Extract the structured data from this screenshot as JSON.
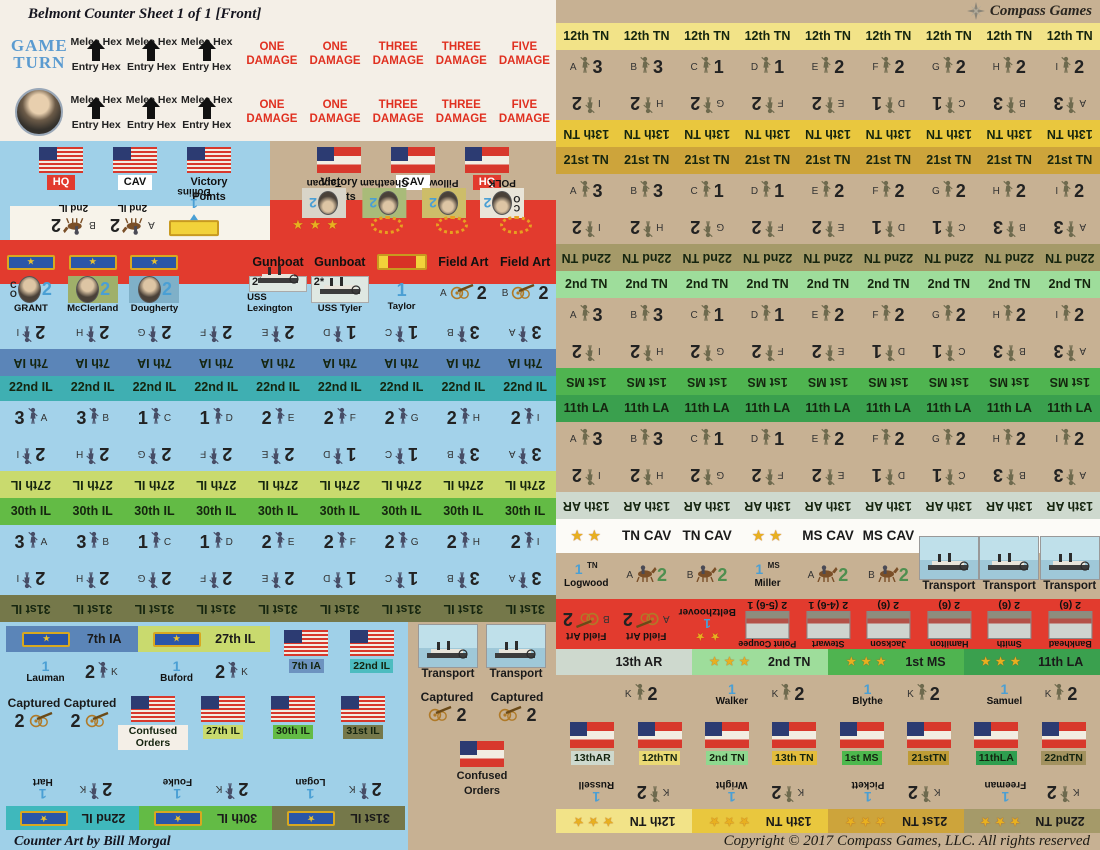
{
  "title": "Belmont Counter Sheet 1 of 1 [Front]",
  "publisher": "Compass Games",
  "credits": {
    "art": "Counter Art by Bill Morgal",
    "copyright": "Copyright © 2017 Compass Games, LLC. All rights reserved"
  },
  "header": {
    "gt1": "GAME",
    "gt2": "TURN",
    "rows": [
      {
        "portrait": "none",
        "melee": [
          {
            "t": "Melee Hex",
            "b": "Entry Hex"
          },
          {
            "t": "Melee Hex",
            "b": "Entry Hex"
          },
          {
            "t": "Melee Hex",
            "b": "Entry Hex"
          }
        ],
        "damage": [
          {
            "l1": "ONE",
            "l2": "DAMAGE"
          },
          {
            "l1": "ONE",
            "l2": "DAMAGE"
          },
          {
            "l1": "THREE",
            "l2": "DAMAGE"
          },
          {
            "l1": "THREE",
            "l2": "DAMAGE"
          },
          {
            "l1": "FIVE",
            "l2": "DAMAGE"
          }
        ]
      },
      {
        "portrait": "grant",
        "melee": [
          {
            "t": "Melee Hex",
            "b": "Entry Hex"
          },
          {
            "t": "Melee Hex",
            "b": "Entry Hex"
          },
          {
            "t": "Melee Hex",
            "b": "Entry Hex"
          }
        ],
        "damage": [
          {
            "l1": "ONE",
            "l2": "DAMAGE"
          },
          {
            "l1": "ONE",
            "l2": "DAMAGE"
          },
          {
            "l1": "THREE",
            "l2": "DAMAGE"
          },
          {
            "l1": "THREE",
            "l2": "DAMAGE"
          },
          {
            "l1": "FIVE",
            "l2": "DAMAGE"
          }
        ]
      }
    ]
  },
  "union_markers": {
    "flags": [
      {
        "label": "HQ",
        "variant": "us",
        "lv": "red"
      },
      {
        "label": "CAV",
        "variant": "us",
        "lv": "white"
      },
      {
        "label": "Victory\nPoints",
        "variant": "us",
        "lv": "none"
      }
    ],
    "cav": [
      {
        "name": "2nd IL",
        "l": "B",
        "v": "2"
      },
      {
        "name": "2nd IL",
        "l": "A",
        "v": "2"
      }
    ],
    "dollins": {
      "name": "Dollins",
      "v": "1"
    }
  },
  "csa_markers": {
    "flags": [
      {
        "label": "Victory\nPoints",
        "variant": "csa",
        "lv": "none"
      },
      {
        "label": "CAV",
        "variant": "csa",
        "lv": "white"
      },
      {
        "label": "HQ",
        "variant": "csa",
        "lv": "red"
      }
    ],
    "leaders": [
      {
        "name": "Tappan",
        "v": "2",
        "box": "#d9d5c9",
        "co": ""
      },
      {
        "name": "Cheatham",
        "v": "2",
        "box": "#a9bb79",
        "co": ""
      },
      {
        "name": "Pillow",
        "v": "2",
        "box": "#cdbd69",
        "co": ""
      },
      {
        "name": "POLK",
        "v": "2",
        "box": "#e9e5d9",
        "co": "C\nO"
      }
    ],
    "stars": "★ ★ ★"
  },
  "union_band": {
    "gunboat_label": "Gunboat",
    "field_art_label": "Field Art",
    "leaders": [
      {
        "name": "GRANT",
        "v": "2",
        "co": "C\nO",
        "box": "transparent"
      },
      {
        "name": "McClerland",
        "v": "2",
        "co": "",
        "box": "#9fb06a"
      },
      {
        "name": "Dougherty",
        "v": "2",
        "co": "",
        "box": "#7fb0c8"
      }
    ],
    "gunboats": [
      {
        "top": "2*",
        "name": "USS Lexington"
      },
      {
        "top": "2*",
        "name": "USS Tyler"
      }
    ],
    "taylor": {
      "name": "Taylor",
      "v": "1"
    },
    "field_art": [
      {
        "l": "A",
        "v": "2"
      },
      {
        "l": "B",
        "v": "2"
      }
    ],
    "name": "7th IA",
    "strip": "#5b85b8",
    "fig": "#474d66",
    "companies": [
      {
        "l": "A",
        "v": "3",
        "n": "7th IA"
      },
      {
        "l": "B",
        "v": "3",
        "n": "7th IA"
      },
      {
        "l": "C",
        "v": "1",
        "n": "7th IA"
      },
      {
        "l": "D",
        "v": "1",
        "n": "7th IA"
      },
      {
        "l": "E",
        "v": "2",
        "n": "7th IA"
      },
      {
        "l": "F",
        "v": "2",
        "n": "7th IA"
      },
      {
        "l": "G",
        "v": "2",
        "n": "7th IA"
      },
      {
        "l": "H",
        "v": "2",
        "n": "7th IA"
      },
      {
        "l": "I",
        "v": "2",
        "n": "7th IA"
      }
    ]
  },
  "union_regiments": [
    {
      "bg": "#a3d2ea",
      "fig": "#474d66",
      "top": {
        "name": "22nd IL",
        "strip": "#3fafb2"
      },
      "bottom": {
        "name": "27th IL",
        "strip": "#c9da6e"
      },
      "companies": [
        {
          "l": "A",
          "v": "3",
          "n": "22nd IL",
          "bn": "27th IL"
        },
        {
          "l": "B",
          "v": "3",
          "n": "22nd IL",
          "bn": "27th IL"
        },
        {
          "l": "C",
          "v": "1",
          "n": "22nd IL",
          "bn": "27th IL"
        },
        {
          "l": "D",
          "v": "1",
          "n": "22nd IL",
          "bn": "27th IL"
        },
        {
          "l": "E",
          "v": "2",
          "n": "22nd IL",
          "bn": "27th IL"
        },
        {
          "l": "F",
          "v": "2",
          "n": "22nd IL",
          "bn": "27th IL"
        },
        {
          "l": "G",
          "v": "2",
          "n": "22nd IL",
          "bn": "27th IL"
        },
        {
          "l": "H",
          "v": "2",
          "n": "22nd IL",
          "bn": "27th IL"
        },
        {
          "l": "I",
          "v": "2",
          "n": "22nd IL",
          "bn": "27th IL"
        }
      ]
    },
    {
      "bg": "#a3d2ea",
      "fig": "#474d66",
      "top": {
        "name": "30th IL",
        "strip": "#63bb45"
      },
      "bottom": {
        "name": "31st IL",
        "strip": "#75784a"
      },
      "companies": [
        {
          "l": "A",
          "v": "3",
          "n": "30th IL",
          "bn": "31st IL"
        },
        {
          "l": "B",
          "v": "3",
          "n": "30th IL",
          "bn": "31st IL"
        },
        {
          "l": "C",
          "v": "1",
          "n": "30th IL",
          "bn": "31st IL"
        },
        {
          "l": "D",
          "v": "1",
          "n": "30th IL",
          "bn": "31st IL"
        },
        {
          "l": "E",
          "v": "2",
          "n": "30th IL",
          "bn": "31st IL"
        },
        {
          "l": "F",
          "v": "2",
          "n": "30th IL",
          "bn": "31st IL"
        },
        {
          "l": "G",
          "v": "2",
          "n": "30th IL",
          "bn": "31st IL"
        },
        {
          "l": "H",
          "v": "2",
          "n": "30th IL",
          "bn": "31st IL"
        },
        {
          "l": "I",
          "v": "2",
          "n": "30th IL",
          "bn": "31st IL"
        }
      ]
    }
  ],
  "csa_regiments": [
    {
      "bg": "#c7b193",
      "fig": "#6e6a4e",
      "top": {
        "name": "12th TN",
        "strip": "#f2e388"
      },
      "bottom": {
        "name": "13th TN",
        "strip": "#e9c73e"
      },
      "companies": [
        {
          "l": "A",
          "v": "3",
          "n": "12th TN",
          "bn": "13th TN"
        },
        {
          "l": "B",
          "v": "3",
          "n": "12th TN",
          "bn": "13th TN"
        },
        {
          "l": "C",
          "v": "1",
          "n": "12th TN",
          "bn": "13th TN"
        },
        {
          "l": "D",
          "v": "1",
          "n": "12th TN",
          "bn": "13th TN"
        },
        {
          "l": "E",
          "v": "2",
          "n": "12th TN",
          "bn": "13th TN"
        },
        {
          "l": "F",
          "v": "2",
          "n": "12th TN",
          "bn": "13th TN"
        },
        {
          "l": "G",
          "v": "2",
          "n": "12th TN",
          "bn": "13th TN"
        },
        {
          "l": "H",
          "v": "2",
          "n": "12th TN",
          "bn": "13th TN"
        },
        {
          "l": "I",
          "v": "2",
          "n": "12th TN",
          "bn": "13th TN"
        }
      ]
    },
    {
      "bg": "#c7b193",
      "fig": "#6e6a4e",
      "top": {
        "name": "21st TN",
        "strip": "#cda43b"
      },
      "bottom": {
        "name": "22nd TN",
        "strip": "#a59a69"
      },
      "companies": [
        {
          "l": "A",
          "v": "3",
          "n": "21st TN",
          "bn": "22nd TN"
        },
        {
          "l": "B",
          "v": "3",
          "n": "21st TN",
          "bn": "22nd TN"
        },
        {
          "l": "C",
          "v": "1",
          "n": "21st TN",
          "bn": "22nd TN"
        },
        {
          "l": "D",
          "v": "1",
          "n": "21st TN",
          "bn": "22nd TN"
        },
        {
          "l": "E",
          "v": "2",
          "n": "21st TN",
          "bn": "22nd TN"
        },
        {
          "l": "F",
          "v": "2",
          "n": "21st TN",
          "bn": "22nd TN"
        },
        {
          "l": "G",
          "v": "2",
          "n": "21st TN",
          "bn": "22nd TN"
        },
        {
          "l": "H",
          "v": "2",
          "n": "21st TN",
          "bn": "22nd TN"
        },
        {
          "l": "I",
          "v": "2",
          "n": "21st TN",
          "bn": "22nd TN"
        }
      ]
    },
    {
      "bg": "#c7b193",
      "fig": "#6e6a4e",
      "top": {
        "name": "2nd TN",
        "strip": "#9edd9b"
      },
      "bottom": {
        "name": "1st MS",
        "strip": "#4fb450"
      },
      "companies": [
        {
          "l": "A",
          "v": "3",
          "n": "2nd TN",
          "bn": "1st MS"
        },
        {
          "l": "B",
          "v": "3",
          "n": "2nd TN",
          "bn": "1st MS"
        },
        {
          "l": "C",
          "v": "1",
          "n": "2nd TN",
          "bn": "1st MS"
        },
        {
          "l": "D",
          "v": "1",
          "n": "2nd TN",
          "bn": "1st MS"
        },
        {
          "l": "E",
          "v": "2",
          "n": "2nd TN",
          "bn": "1st MS"
        },
        {
          "l": "F",
          "v": "2",
          "n": "2nd TN",
          "bn": "1st MS"
        },
        {
          "l": "G",
          "v": "2",
          "n": "2nd TN",
          "bn": "1st MS"
        },
        {
          "l": "H",
          "v": "2",
          "n": "2nd TN",
          "bn": "1st MS"
        },
        {
          "l": "I",
          "v": "2",
          "n": "2nd TN",
          "bn": "1st MS"
        }
      ]
    },
    {
      "bg": "#c7b193",
      "fig": "#6e6a4e",
      "top": {
        "name": "11th LA",
        "strip": "#3aa04e"
      },
      "bottom": {
        "name": "13th AR",
        "strip": "#ced9ce"
      },
      "companies": [
        {
          "l": "A",
          "v": "3",
          "n": "11th LA",
          "bn": "13th AR"
        },
        {
          "l": "B",
          "v": "3",
          "n": "11th LA",
          "bn": "13th AR"
        },
        {
          "l": "C",
          "v": "1",
          "n": "11th LA",
          "bn": "13th AR"
        },
        {
          "l": "D",
          "v": "1",
          "n": "11th LA",
          "bn": "13th AR"
        },
        {
          "l": "E",
          "v": "2",
          "n": "11th LA",
          "bn": "13th AR"
        },
        {
          "l": "F",
          "v": "2",
          "n": "11th LA",
          "bn": "13th AR"
        },
        {
          "l": "G",
          "v": "2",
          "n": "11th LA",
          "bn": "13th AR"
        },
        {
          "l": "H",
          "v": "2",
          "n": "11th LA",
          "bn": "13th AR"
        },
        {
          "l": "I",
          "v": "2",
          "n": "11th LA",
          "bn": "13th AR"
        }
      ]
    }
  ],
  "csa_band": {
    "stars2": "★ ★",
    "tn_cav_label": "TN CAV",
    "ms_cav_label": "MS CAV",
    "logwood": {
      "v": "1",
      "tag": "TN",
      "name": "Logwood"
    },
    "miller": {
      "v": "1",
      "tag": "MS",
      "name": "Miller"
    },
    "tn_cav": [
      {
        "l": "A",
        "v": "2"
      },
      {
        "l": "B",
        "v": "2"
      }
    ],
    "ms_cav": [
      {
        "l": "A",
        "v": "2"
      },
      {
        "l": "B",
        "v": "2"
      }
    ],
    "transports": [
      {
        "label": "Transport"
      },
      {
        "label": "Transport"
      },
      {
        "label": "Transport"
      }
    ],
    "field_art": [
      {
        "label": "Field Art",
        "l": "B",
        "v": "2"
      },
      {
        "label": "Field Art",
        "l": "A",
        "v": "2"
      }
    ],
    "beltzhoover": {
      "name": "Beltzhoover",
      "v": "1",
      "stars": "★ ★"
    },
    "batteries": [
      {
        "name": "Point Coupee",
        "stats": "2 (5-6) 1"
      },
      {
        "name": "Stewart",
        "stats": "2 (4-6) 1"
      },
      {
        "name": "Jackson",
        "stats": "2 (6)"
      },
      {
        "name": "Hamilton",
        "stats": "2 (6)"
      },
      {
        "name": "Smith",
        "stats": "2 (6)"
      },
      {
        "name": "Bankhead",
        "stats": "2 (6)"
      }
    ]
  },
  "bottom_left": {
    "blocks_top": [
      {
        "name": "7th IA",
        "strip": "#5b85b8",
        "leader": "Lauman",
        "lv": "1",
        "kl": "K",
        "kv": "2"
      },
      {
        "name": "27th IL",
        "strip": "#c9da6e",
        "leader": "Buford",
        "lv": "1",
        "kl": "K",
        "kv": "2"
      }
    ],
    "flags_top": [
      {
        "label": "7th IA",
        "bg": "#6d93c0",
        "variant": "us"
      },
      {
        "label": "22nd IL",
        "bg": "#4cbcc0",
        "variant": "us"
      }
    ],
    "captured": [
      {
        "label": "Captured",
        "v": "2"
      },
      {
        "label": "Captured",
        "v": "2"
      }
    ],
    "flags_mid": [
      {
        "label": "Confused Orders",
        "bg": "#f4efe7",
        "variant": "us"
      },
      {
        "label": "27th IL",
        "bg": "#c9da6e",
        "variant": "us"
      },
      {
        "label": "30th IL",
        "bg": "#63bb45",
        "variant": "us"
      },
      {
        "label": "31st IL",
        "bg": "#75784a",
        "variant": "us"
      }
    ],
    "blocks_bottom": [
      {
        "name": "22nd IL",
        "strip": "#3fb8bc",
        "leader": "Hart",
        "lv": "1",
        "kl": "K",
        "kv": "2"
      },
      {
        "name": "30th IL",
        "strip": "#63bb45",
        "leader": "Fouke",
        "lv": "1",
        "kl": "K",
        "kv": "2"
      },
      {
        "name": "31st IL",
        "strip": "#75784a",
        "leader": "Logan",
        "lv": "1",
        "kl": "K",
        "kv": "2"
      }
    ]
  },
  "center_bottom": {
    "transports": [
      {
        "label": "Transport"
      },
      {
        "label": "Transport"
      }
    ],
    "captured": [
      {
        "label": "Captured",
        "v": "2"
      },
      {
        "label": "Captured",
        "v": "2"
      }
    ],
    "confused": {
      "label": "Confused\nOrders",
      "variant": "csa"
    }
  },
  "bottom_right": {
    "blocks_top": [
      {
        "name": "13th AR",
        "strip": "#ced9ce",
        "stars": "",
        "leader": "",
        "lv": "",
        "kl": "K",
        "kv": "2",
        "has": "no"
      },
      {
        "name": "2nd TN",
        "strip": "#9edd9b",
        "stars": "★ ★ ★",
        "leader": "Walker",
        "lv": "1",
        "kl": "K",
        "kv": "2",
        "has": "yes"
      },
      {
        "name": "1st MS",
        "strip": "#4fb450",
        "stars": "★ ★ ★",
        "leader": "Blythe",
        "lv": "1",
        "kl": "K",
        "kv": "2",
        "has": "yes"
      },
      {
        "name": "11th LA",
        "strip": "#3aa04e",
        "stars": "★ ★ ★",
        "leader": "Samuel",
        "lv": "1",
        "kl": "K",
        "kv": "2",
        "has": "yes"
      }
    ],
    "flags": [
      {
        "label": "13thAR",
        "bg": "#ced9ce",
        "variant": "csa"
      },
      {
        "label": "12thTN",
        "bg": "#ead975",
        "variant": "csa"
      },
      {
        "label": "2nd TN",
        "bg": "#8fd88f",
        "variant": "csa"
      },
      {
        "label": "13th TN",
        "bg": "#e3bc3c",
        "variant": "csa"
      },
      {
        "label": "1st MS",
        "bg": "#4db84d",
        "variant": "csa"
      },
      {
        "label": "21stTN",
        "bg": "#bf9c35",
        "variant": "csa"
      },
      {
        "label": "11thLA",
        "bg": "#2f9e4f",
        "variant": "csa"
      },
      {
        "label": "22ndTN",
        "bg": "#a3925f",
        "variant": "csa"
      }
    ],
    "blocks_bottom": [
      {
        "name": "12th TN",
        "strip": "#f2e388",
        "stars": "★ ★ ★",
        "leader": "Russell",
        "lv": "1",
        "kl": "K",
        "kv": "2"
      },
      {
        "name": "13th TN",
        "strip": "#e9c73e",
        "stars": "★ ★ ★",
        "leader": "Wright",
        "lv": "1",
        "kl": "K",
        "kv": "2"
      },
      {
        "name": "21st TN",
        "strip": "#cda43b",
        "stars": "★ ★ ★",
        "leader": "Pickett",
        "lv": "1",
        "kl": "K",
        "kv": "2"
      },
      {
        "name": "22nd TN",
        "strip": "#a59a69",
        "stars": "★ ★ ★",
        "leader": "Freeman",
        "lv": "1",
        "kl": "K",
        "kv": "2"
      }
    ]
  }
}
